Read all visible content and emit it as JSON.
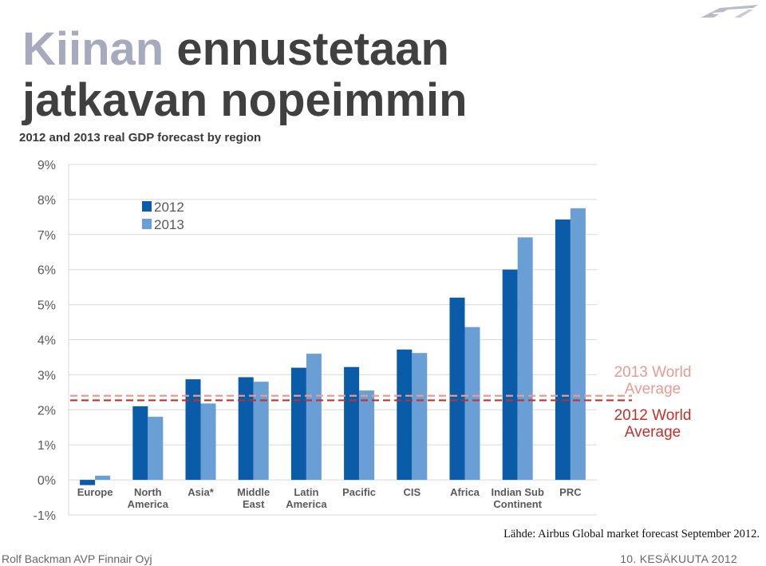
{
  "slide": {
    "title_accent": "Kiinan",
    "title_rest": "ennustetaan",
    "title_line2": "jatkavan nopeimmin",
    "source": "Lähde: Airbus Global market forecast September 2012.",
    "footer_left": "Rolf Backman AVP Finnair Oyj",
    "footer_right": "10. KESÄKUUTA 2012",
    "logo_icon": "finnair-logo-icon"
  },
  "chart_data": {
    "type": "bar",
    "title": "2012 and 2013 real GDP forecast by region",
    "categories": [
      [
        "Europe"
      ],
      [
        "North",
        "America"
      ],
      [
        "Asia*"
      ],
      [
        "Middle",
        "East"
      ],
      [
        "Latin",
        "America"
      ],
      [
        "Pacific"
      ],
      [
        "CIS"
      ],
      [
        "Africa"
      ],
      [
        "Indian Sub",
        "Continent"
      ],
      [
        "PRC"
      ]
    ],
    "series": [
      {
        "name": "2012",
        "color": "#0a5ba8",
        "values": [
          -0.15,
          2.1,
          2.87,
          2.93,
          3.2,
          3.22,
          3.72,
          5.2,
          6.0,
          7.43
        ]
      },
      {
        "name": "2013",
        "color": "#6a9fd6",
        "values": [
          0.12,
          1.8,
          2.18,
          2.8,
          3.6,
          2.55,
          3.62,
          4.36,
          6.92,
          7.75
        ]
      }
    ],
    "ylim": [
      -1,
      9
    ],
    "yticks": [
      -1,
      0,
      1,
      2,
      3,
      4,
      5,
      6,
      7,
      8,
      9
    ],
    "ytick_labels": [
      "-1%",
      "0%",
      "1%",
      "2%",
      "3%",
      "4%",
      "5%",
      "6%",
      "7%",
      "8%",
      "9%"
    ],
    "grid": true,
    "legend_position": "top-left",
    "reference_lines": [
      {
        "label": [
          "2013 World",
          "Average"
        ],
        "value": 2.4,
        "color": "#e89a94",
        "style": "dashed"
      },
      {
        "label": [
          "2012 World",
          "Average"
        ],
        "value": 2.27,
        "color": "#c0312a",
        "style": "dashed"
      }
    ]
  }
}
